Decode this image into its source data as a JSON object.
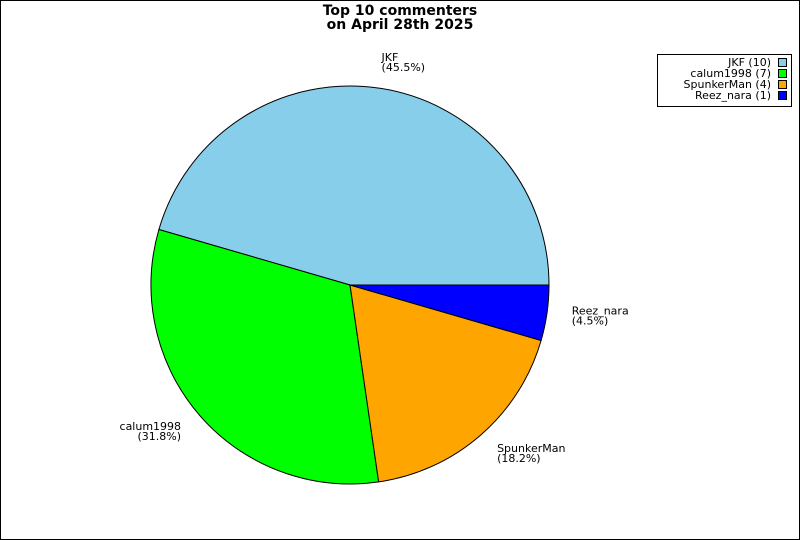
{
  "chart_data": {
    "type": "pie",
    "title": "Top 10 commenters",
    "subtitle": "on April 28th 2025",
    "categories": [
      "JKF",
      "calum1998",
      "SpunkerMan",
      "Reez_nara"
    ],
    "values": [
      45.5,
      31.8,
      18.2,
      4.5
    ],
    "value_labels": [
      "(45.5%)",
      "(31.8%)",
      "(18.2%)",
      "(4.5%)"
    ],
    "legend_labels": [
      "JKF (10)",
      "calum1998 (7)",
      "SpunkerMan (4)",
      "Reez_nara (1)"
    ],
    "colors": [
      "#87ceeb",
      "#00ff00",
      "#ffa500",
      "#0000ff"
    ],
    "legend": "upper right"
  }
}
